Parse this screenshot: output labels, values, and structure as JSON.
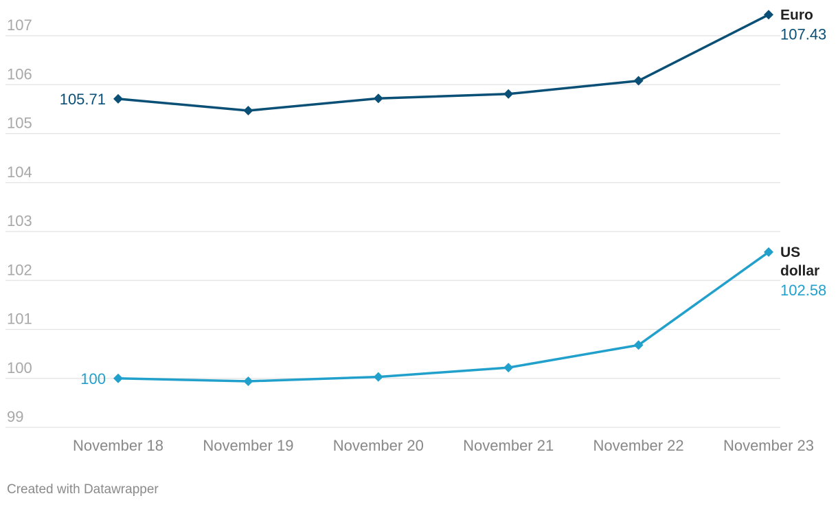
{
  "chart_data": {
    "type": "line",
    "x": [
      "November 18",
      "November 19",
      "November 20",
      "November 21",
      "November 22",
      "November 23"
    ],
    "y_ticks": [
      99,
      100,
      101,
      102,
      103,
      104,
      105,
      106,
      107
    ],
    "ylim": [
      98.9,
      107.4
    ],
    "grid": true,
    "series": [
      {
        "name": "Euro",
        "color": "#0a4f75",
        "values": [
          105.71,
          105.47,
          105.72,
          105.81,
          106.08,
          107.43
        ],
        "start_label": "105.71",
        "end_label": "107.43",
        "label_lines": [
          "Euro"
        ]
      },
      {
        "name": "US dollar",
        "color": "#22a0cc",
        "values": [
          100,
          99.94,
          100.03,
          100.22,
          100.68,
          102.58
        ],
        "start_label": "100",
        "end_label": "102.58",
        "label_lines": [
          "US",
          "dollar"
        ]
      }
    ]
  },
  "credit": "Created with Datawrapper"
}
